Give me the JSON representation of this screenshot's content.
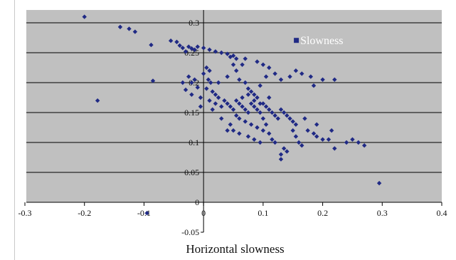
{
  "chart_data": {
    "type": "scatter",
    "title": "",
    "xlabel": "Horizontal slowness",
    "ylabel": "",
    "xlim": [
      -0.3,
      0.4
    ],
    "ylim": [
      -0.05,
      0.3
    ],
    "x_ticks": [
      "-0.3",
      "-0.2",
      "-0.1",
      "0",
      "0.1",
      "0.2",
      "0.3",
      "0.4"
    ],
    "y_ticks": [
      "-0.05",
      "0",
      "0.05",
      "0.1",
      "0.15",
      "0.2",
      "0.25",
      "0.3"
    ],
    "grid": "horizontal",
    "legend_position": "top-right",
    "colors": {
      "plot_background": "#c0c0c0",
      "marker": "#202a85",
      "gridline": "#000000"
    },
    "series": [
      {
        "name": "Slowness",
        "points": [
          [
            -0.2,
            0.31
          ],
          [
            -0.14,
            0.293
          ],
          [
            -0.125,
            0.29
          ],
          [
            -0.115,
            0.285
          ],
          [
            -0.088,
            0.263
          ],
          [
            -0.085,
            0.203
          ],
          [
            -0.178,
            0.17
          ],
          [
            -0.095,
            -0.018
          ],
          [
            -0.055,
            0.27
          ],
          [
            -0.045,
            0.268
          ],
          [
            -0.04,
            0.262
          ],
          [
            -0.035,
            0.258
          ],
          [
            -0.03,
            0.252
          ],
          [
            -0.025,
            0.26
          ],
          [
            -0.02,
            0.257
          ],
          [
            -0.015,
            0.255
          ],
          [
            -0.01,
            0.26
          ],
          [
            0.0,
            0.258
          ],
          [
            0.01,
            0.255
          ],
          [
            0.02,
            0.252
          ],
          [
            0.03,
            0.25
          ],
          [
            0.04,
            0.248
          ],
          [
            0.05,
            0.245
          ],
          [
            0.055,
            0.24
          ],
          [
            0.045,
            0.243
          ],
          [
            -0.025,
            0.21
          ],
          [
            -0.015,
            0.205
          ],
          [
            -0.02,
            0.2
          ],
          [
            -0.01,
            0.192
          ],
          [
            -0.03,
            0.188
          ],
          [
            -0.02,
            0.18
          ],
          [
            -0.005,
            0.175
          ],
          [
            0.005,
            0.225
          ],
          [
            0.01,
            0.22
          ],
          [
            0.0,
            0.215
          ],
          [
            0.008,
            0.205
          ],
          [
            0.012,
            0.2
          ],
          [
            0.005,
            0.19
          ],
          [
            0.015,
            0.185
          ],
          [
            0.02,
            0.18
          ],
          [
            0.025,
            0.175
          ],
          [
            0.01,
            0.17
          ],
          [
            0.02,
            0.165
          ],
          [
            0.03,
            0.16
          ],
          [
            -0.005,
            0.16
          ],
          [
            0.015,
            0.155
          ],
          [
            0.04,
            0.21
          ],
          [
            0.05,
            0.23
          ],
          [
            0.055,
            0.22
          ],
          [
            0.06,
            0.205
          ],
          [
            0.07,
            0.2
          ],
          [
            0.075,
            0.19
          ],
          [
            0.08,
            0.185
          ],
          [
            0.085,
            0.18
          ],
          [
            0.09,
            0.175
          ],
          [
            0.065,
            0.23
          ],
          [
            0.07,
            0.24
          ],
          [
            0.09,
            0.235
          ],
          [
            0.1,
            0.23
          ],
          [
            0.11,
            0.225
          ],
          [
            0.105,
            0.21
          ],
          [
            0.12,
            0.215
          ],
          [
            0.13,
            0.205
          ],
          [
            0.095,
            0.195
          ],
          [
            0.035,
            0.17
          ],
          [
            0.04,
            0.165
          ],
          [
            0.045,
            0.16
          ],
          [
            0.05,
            0.155
          ],
          [
            0.055,
            0.17
          ],
          [
            0.06,
            0.165
          ],
          [
            0.065,
            0.16
          ],
          [
            0.07,
            0.155
          ],
          [
            0.075,
            0.15
          ],
          [
            0.08,
            0.165
          ],
          [
            0.085,
            0.16
          ],
          [
            0.09,
            0.155
          ],
          [
            0.095,
            0.15
          ],
          [
            0.1,
            0.165
          ],
          [
            0.105,
            0.16
          ],
          [
            0.11,
            0.155
          ],
          [
            0.115,
            0.15
          ],
          [
            0.12,
            0.145
          ],
          [
            0.125,
            0.14
          ],
          [
            0.13,
            0.155
          ],
          [
            0.135,
            0.15
          ],
          [
            0.14,
            0.145
          ],
          [
            0.145,
            0.14
          ],
          [
            0.15,
            0.135
          ],
          [
            0.155,
            0.13
          ],
          [
            0.06,
            0.14
          ],
          [
            0.07,
            0.135
          ],
          [
            0.08,
            0.13
          ],
          [
            0.09,
            0.125
          ],
          [
            0.1,
            0.12
          ],
          [
            0.11,
            0.115
          ],
          [
            0.05,
            0.12
          ],
          [
            0.06,
            0.115
          ],
          [
            0.075,
            0.11
          ],
          [
            0.085,
            0.105
          ],
          [
            0.095,
            0.1
          ],
          [
            0.115,
            0.105
          ],
          [
            0.12,
            0.1
          ],
          [
            0.135,
            0.09
          ],
          [
            0.14,
            0.085
          ],
          [
            0.13,
            0.08
          ],
          [
            0.13,
            0.072
          ],
          [
            0.15,
            0.12
          ],
          [
            0.155,
            0.11
          ],
          [
            0.16,
            0.1
          ],
          [
            0.165,
            0.095
          ],
          [
            0.17,
            0.14
          ],
          [
            0.175,
            0.12
          ],
          [
            0.185,
            0.115
          ],
          [
            0.19,
            0.13
          ],
          [
            0.19,
            0.11
          ],
          [
            0.2,
            0.105
          ],
          [
            0.21,
            0.105
          ],
          [
            0.215,
            0.12
          ],
          [
            0.22,
            0.09
          ],
          [
            0.24,
            0.1
          ],
          [
            0.25,
            0.105
          ],
          [
            0.26,
            0.1
          ],
          [
            0.27,
            0.095
          ],
          [
            0.295,
            0.032
          ],
          [
            0.18,
            0.21
          ],
          [
            0.185,
            0.195
          ],
          [
            0.2,
            0.205
          ],
          [
            0.22,
            0.205
          ],
          [
            0.165,
            0.215
          ],
          [
            0.155,
            0.22
          ],
          [
            0.145,
            0.21
          ],
          [
            -0.035,
            0.2
          ],
          [
            0.025,
            0.2
          ],
          [
            0.03,
            0.14
          ],
          [
            0.04,
            0.12
          ],
          [
            0.045,
            0.13
          ],
          [
            0.055,
            0.145
          ],
          [
            0.065,
            0.175
          ],
          [
            0.075,
            0.18
          ],
          [
            0.085,
            0.17
          ],
          [
            0.095,
            0.165
          ],
          [
            0.1,
            0.14
          ],
          [
            0.105,
            0.13
          ],
          [
            0.11,
            0.175
          ]
        ]
      }
    ]
  }
}
